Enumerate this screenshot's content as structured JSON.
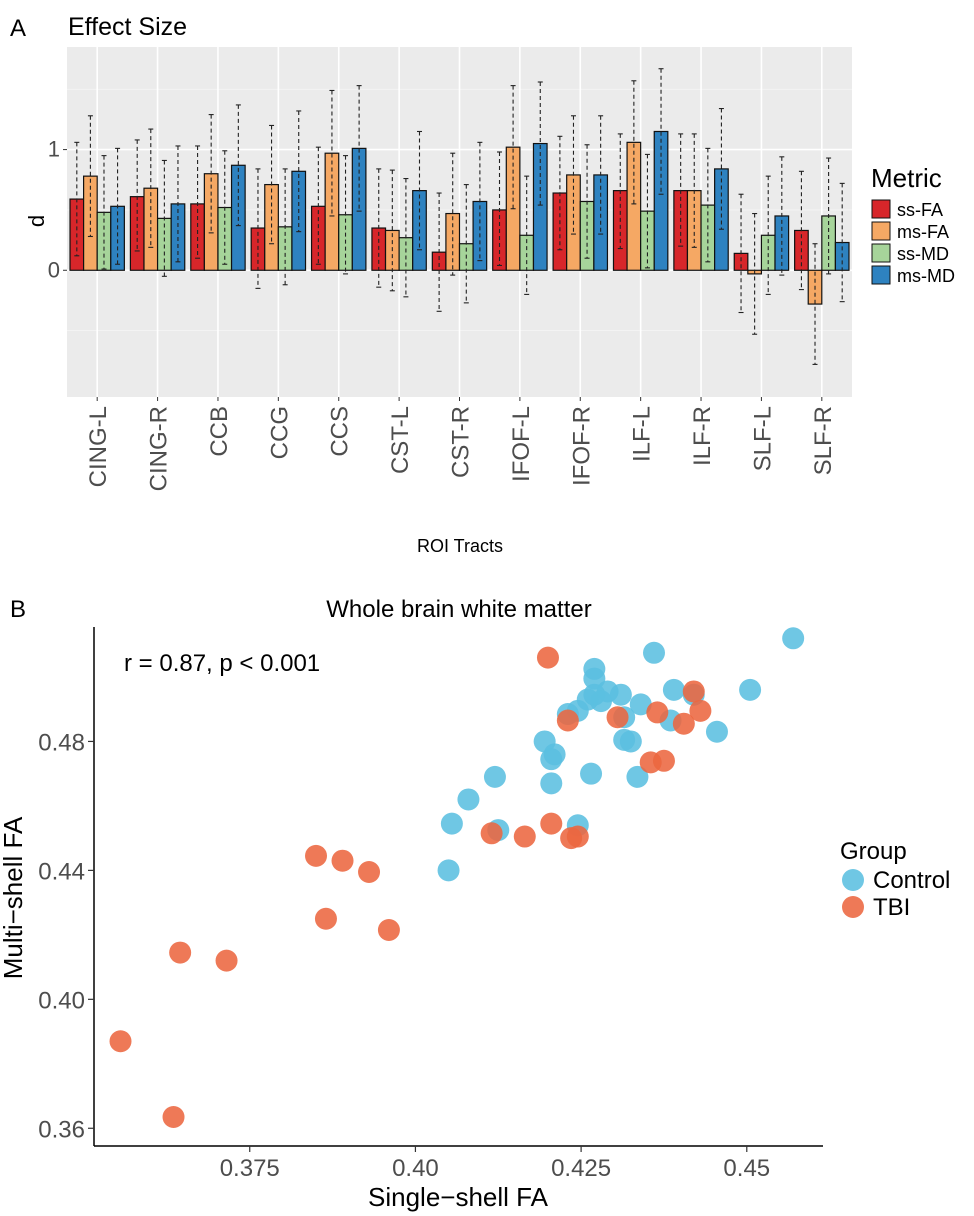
{
  "panel_a": {
    "label": "A",
    "title": "Effect Size"
  },
  "panel_b": {
    "label": "B",
    "title": "Whole brain white matter"
  },
  "chart_data": [
    {
      "type": "bar",
      "title": "Effect Size",
      "xlabel": "ROI Tracts",
      "ylabel": "d",
      "ylim": [
        -1.05,
        1.85
      ],
      "yticks": [
        "0",
        "1"
      ],
      "grid": true,
      "legend": {
        "title": "Metric",
        "placement": "right"
      },
      "categories": [
        "CING-L",
        "CING-R",
        "CCB",
        "CCG",
        "CCS",
        "CST-L",
        "CST-R",
        "IFOF-L",
        "IFOF-R",
        "ILF-L",
        "ILF-R",
        "SLF-L",
        "SLF-R"
      ],
      "series": [
        {
          "name": "ss-FA",
          "color": "#d7262a",
          "values": [
            0.59,
            0.61,
            0.55,
            0.35,
            0.53,
            0.35,
            0.15,
            0.5,
            0.64,
            0.66,
            0.66,
            0.14,
            0.33
          ],
          "ci_low": [
            0.12,
            0.16,
            0.1,
            -0.15,
            0.05,
            -0.14,
            -0.34,
            0.04,
            0.17,
            0.18,
            0.2,
            -0.35,
            -0.16
          ],
          "ci_high": [
            1.06,
            1.08,
            1.03,
            0.84,
            1.02,
            0.84,
            0.64,
            0.98,
            1.11,
            1.13,
            1.13,
            0.63,
            0.82
          ]
        },
        {
          "name": "ms-FA",
          "color": "#f5a864",
          "values": [
            0.78,
            0.68,
            0.8,
            0.71,
            0.97,
            0.33,
            0.47,
            1.02,
            0.79,
            1.06,
            0.66,
            -0.03,
            -0.28
          ],
          "ci_low": [
            0.28,
            0.19,
            0.31,
            0.22,
            0.45,
            -0.17,
            -0.04,
            0.51,
            0.3,
            0.55,
            0.19,
            -0.53,
            -0.78
          ],
          "ci_high": [
            1.28,
            1.17,
            1.29,
            1.2,
            1.49,
            0.83,
            0.97,
            1.53,
            1.28,
            1.57,
            1.13,
            0.47,
            0.22
          ]
        },
        {
          "name": "ss-MD",
          "color": "#a6d49a",
          "values": [
            0.48,
            0.43,
            0.52,
            0.36,
            0.46,
            0.27,
            0.22,
            0.29,
            0.57,
            0.49,
            0.54,
            0.29,
            0.45
          ],
          "ci_low": [
            0.01,
            -0.05,
            0.05,
            -0.12,
            -0.03,
            -0.22,
            -0.27,
            -0.2,
            0.1,
            0.02,
            0.07,
            -0.2,
            -0.03
          ],
          "ci_high": [
            0.95,
            0.91,
            0.99,
            0.84,
            0.95,
            0.76,
            0.71,
            0.78,
            1.04,
            0.96,
            1.01,
            0.78,
            0.93
          ]
        },
        {
          "name": "ms-MD",
          "color": "#2e82c0",
          "values": [
            0.53,
            0.55,
            0.87,
            0.82,
            1.01,
            0.66,
            0.57,
            1.05,
            0.79,
            1.15,
            0.84,
            0.45,
            0.23
          ],
          "ci_low": [
            0.05,
            0.07,
            0.37,
            0.32,
            0.49,
            0.17,
            0.08,
            0.54,
            0.3,
            0.63,
            0.34,
            -0.04,
            -0.26
          ],
          "ci_high": [
            1.01,
            1.03,
            1.37,
            1.32,
            1.53,
            1.15,
            1.06,
            1.56,
            1.28,
            1.67,
            1.34,
            0.94,
            0.72
          ]
        }
      ]
    },
    {
      "type": "scatter",
      "title": "Whole brain white matter",
      "xlabel": "Single−shell FA",
      "ylabel": "Multi−shell FA",
      "xlim": [
        0.3515,
        0.4615
      ],
      "ylim": [
        0.3545,
        0.5155
      ],
      "xticks": [
        "0.375",
        "0.40",
        "0.425",
        "0.45"
      ],
      "yticks": [
        "0.36",
        "0.40",
        "0.44",
        "0.48"
      ],
      "annotation": "r = 0.87, p < 0.001",
      "legend": {
        "title": "Group",
        "placement": "right"
      },
      "series": [
        {
          "name": "Control",
          "color": "#5bbfe0",
          "points": [
            [
              0.457,
              0.512
            ],
            [
              0.436,
              0.5075
            ],
            [
              0.427,
              0.5025
            ],
            [
              0.427,
              0.4995
            ],
            [
              0.429,
              0.4955
            ],
            [
              0.427,
              0.4945
            ],
            [
              0.428,
              0.4925
            ],
            [
              0.426,
              0.493
            ],
            [
              0.431,
              0.4945
            ],
            [
              0.434,
              0.4915
            ],
            [
              0.439,
              0.496
            ],
            [
              0.442,
              0.4945
            ],
            [
              0.4505,
              0.496
            ],
            [
              0.4245,
              0.4895
            ],
            [
              0.423,
              0.4885
            ],
            [
              0.4315,
              0.4875
            ],
            [
              0.4385,
              0.4865
            ],
            [
              0.4315,
              0.4805
            ],
            [
              0.4325,
              0.48
            ],
            [
              0.4455,
              0.483
            ],
            [
              0.4195,
              0.48
            ],
            [
              0.421,
              0.476
            ],
            [
              0.4205,
              0.4745
            ],
            [
              0.4265,
              0.47
            ],
            [
              0.4335,
              0.469
            ],
            [
              0.412,
              0.469
            ],
            [
              0.4205,
              0.467
            ],
            [
              0.408,
              0.462
            ],
            [
              0.4055,
              0.4545
            ],
            [
              0.4125,
              0.4525
            ],
            [
              0.4245,
              0.454
            ],
            [
              0.405,
              0.44
            ]
          ]
        },
        {
          "name": "TBI",
          "color": "#ec6740",
          "points": [
            [
              0.42,
              0.506
            ],
            [
              0.442,
              0.4955
            ],
            [
              0.443,
              0.4895
            ],
            [
              0.4365,
              0.489
            ],
            [
              0.4405,
              0.4855
            ],
            [
              0.4305,
              0.4875
            ],
            [
              0.423,
              0.4865
            ],
            [
              0.4375,
              0.474
            ],
            [
              0.4355,
              0.4735
            ],
            [
              0.4205,
              0.4545
            ],
            [
              0.4115,
              0.4515
            ],
            [
              0.4165,
              0.4505
            ],
            [
              0.4235,
              0.45
            ],
            [
              0.4245,
              0.4505
            ],
            [
              0.385,
              0.4445
            ],
            [
              0.389,
              0.443
            ],
            [
              0.393,
              0.4395
            ],
            [
              0.3865,
              0.425
            ],
            [
              0.396,
              0.4215
            ],
            [
              0.3645,
              0.4145
            ],
            [
              0.3715,
              0.412
            ],
            [
              0.3555,
              0.387
            ],
            [
              0.3635,
              0.3635
            ]
          ]
        }
      ]
    }
  ]
}
